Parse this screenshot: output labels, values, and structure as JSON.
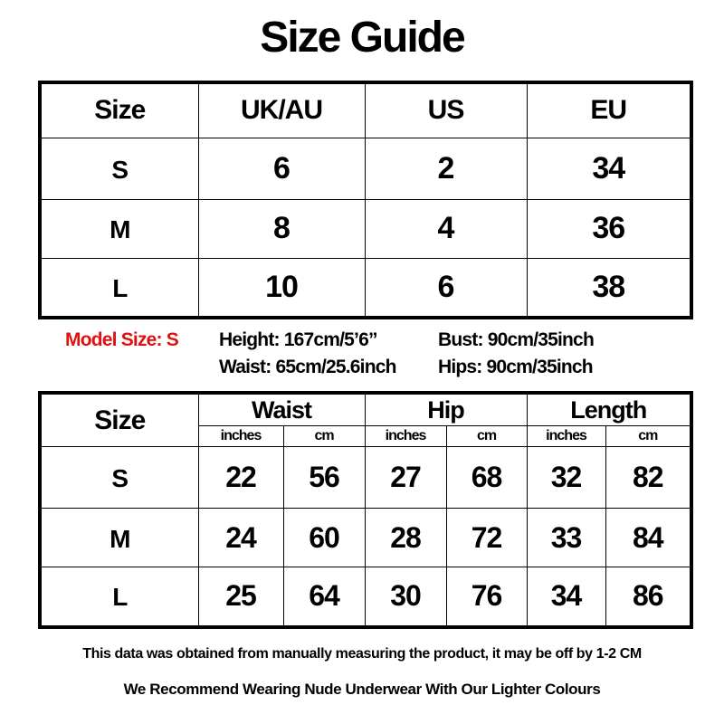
{
  "title": "Size Guide",
  "size_table": {
    "headers": [
      "Size",
      "UK/AU",
      "US",
      "EU"
    ],
    "rows": [
      [
        "S",
        "6",
        "2",
        "34"
      ],
      [
        "M",
        "8",
        "4",
        "36"
      ],
      [
        "L",
        "10",
        "6",
        "38"
      ]
    ]
  },
  "model": {
    "label": "Model Size: S",
    "label_color": "#e01010",
    "height": "Height: 167cm/5’6”",
    "bust": "Bust: 90cm/35inch",
    "waist": "Waist: 65cm/25.6inch",
    "hips": "Hips: 90cm/35inch"
  },
  "measure_table": {
    "size_header": "Size",
    "groups": [
      "Waist",
      "Hip",
      "Length"
    ],
    "units": [
      "inches",
      "cm",
      "inches",
      "cm",
      "inches",
      "cm"
    ],
    "rows": [
      [
        "S",
        "22",
        "56",
        "27",
        "68",
        "32",
        "82"
      ],
      [
        "M",
        "24",
        "60",
        "28",
        "72",
        "33",
        "84"
      ],
      [
        "L",
        "25",
        "64",
        "30",
        "76",
        "34",
        "86"
      ]
    ]
  },
  "footer": {
    "note": "This data was obtained from manually measuring the product, it may be off by 1-2 CM",
    "recommendation": "We Recommend Wearing Nude Underwear With Our Lighter Colours"
  }
}
